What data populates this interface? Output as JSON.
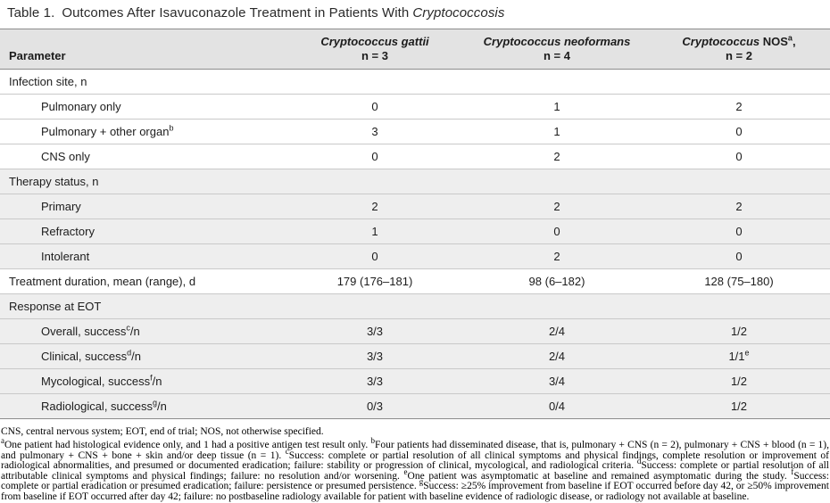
{
  "title": {
    "number": "Table 1.",
    "text": "Outcomes After Isavuconazole Treatment in Patients With",
    "italic": "Cryptococcosis"
  },
  "colors": {
    "header_bg": "#e3e3e3",
    "shaded_row_bg": "#eeeeee",
    "rule_heavy": "#8c8c8c",
    "rule_light": "#c9c9c9"
  },
  "table": {
    "corner_label": "Parameter",
    "columns": [
      {
        "italic": "Cryptococcus gattii",
        "roman": "",
        "n": "n = 3"
      },
      {
        "italic": "Cryptococcus neoformans",
        "roman": "",
        "n": "n = 4"
      },
      {
        "italic": "Cryptococcus",
        "roman": " NOS^a,",
        "n": "n = 2"
      }
    ],
    "rows": [
      {
        "type": "section",
        "label": "Infection site, n",
        "shade": "white"
      },
      {
        "type": "data",
        "label": "Pulmonary only",
        "indent": true,
        "shade": "white",
        "values": [
          "0",
          "1",
          "2"
        ]
      },
      {
        "type": "data",
        "label": "Pulmonary + other organ^b",
        "indent": true,
        "shade": "white",
        "values": [
          "3",
          "1",
          "0"
        ]
      },
      {
        "type": "data",
        "label": "CNS only",
        "indent": true,
        "shade": "white",
        "values": [
          "0",
          "2",
          "0"
        ]
      },
      {
        "type": "section",
        "label": "Therapy status, n",
        "shade": "gray"
      },
      {
        "type": "data",
        "label": "Primary",
        "indent": true,
        "shade": "gray",
        "values": [
          "2",
          "2",
          "2"
        ]
      },
      {
        "type": "data",
        "label": "Refractory",
        "indent": true,
        "shade": "gray",
        "values": [
          "1",
          "0",
          "0"
        ]
      },
      {
        "type": "data",
        "label": "Intolerant",
        "indent": true,
        "shade": "gray",
        "values": [
          "0",
          "2",
          "0"
        ]
      },
      {
        "type": "data",
        "label": "Treatment duration, mean (range), d",
        "indent": false,
        "shade": "white",
        "values": [
          "179 (176–181)",
          "98 (6–182)",
          "128 (75–180)"
        ]
      },
      {
        "type": "section",
        "label": "Response at EOT",
        "shade": "gray"
      },
      {
        "type": "data",
        "label": "Overall, success^c/n",
        "indent": true,
        "shade": "gray",
        "values": [
          "3/3",
          "2/4",
          "1/2"
        ]
      },
      {
        "type": "data",
        "label": "Clinical, success^d/n",
        "indent": true,
        "shade": "gray",
        "values": [
          "3/3",
          "2/4",
          "1/1^e"
        ]
      },
      {
        "type": "data",
        "label": "Mycological, success^f/n",
        "indent": true,
        "shade": "gray",
        "values": [
          "3/3",
          "3/4",
          "1/2"
        ]
      },
      {
        "type": "data",
        "label": "Radiological, success^g/n",
        "indent": true,
        "shade": "gray",
        "values": [
          "0/3",
          "0/4",
          "1/2"
        ]
      }
    ]
  },
  "footnotes": {
    "abbreviations": "CNS, central nervous system; EOT, end of trial; NOS, not otherwise specified.",
    "paragraph": "^aOne patient had histological evidence only, and 1 had a positive antigen test result only. ^bFour patients had disseminated disease, that is, pulmonary + CNS (n = 2), pulmonary + CNS + blood (n = 1), and pulmonary + CNS + bone + skin and/or deep tissue (n = 1). ^cSuccess: complete or partial resolution of all clinical symptoms and physical findings, complete resolution or improvement of radiological abnormalities, and presumed or documented eradication; failure: stability or progression of clinical, mycological, and radiological criteria. ^dSuccess: complete or partial resolution of all attributable clinical symptoms and physical findings; failure: no resolution and/or worsening. ^eOne patient was asymptomatic at baseline and remained asymptomatic during the study. ^fSuccess: complete or partial eradication or presumed eradication; failure: persistence or presumed persistence. ^gSuccess: ≥25% improvement from baseline if EOT occurred before day 42, or ≥50% improvement from baseline if EOT occurred after day 42; failure: no postbaseline radiology available for patient with baseline evidence of radiologic disease, or radiology not available at baseline."
  }
}
